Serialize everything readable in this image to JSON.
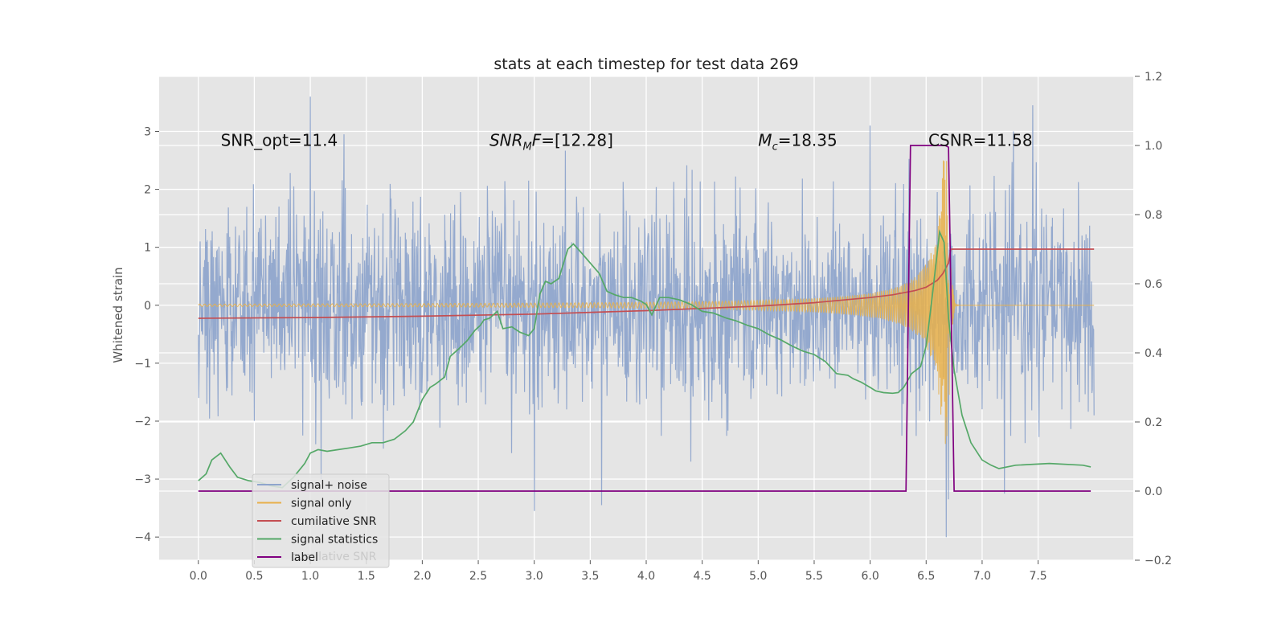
{
  "chart_data": {
    "type": "line",
    "title": "stats at each timestep for test data 269",
    "ylabel": "Whitened strain",
    "y2label": "",
    "xlim": [
      -0.35,
      8.35
    ],
    "ylim": [
      -4.4,
      3.95
    ],
    "y2lim": [
      -0.2,
      1.2
    ],
    "xticks": [
      0.0,
      0.5,
      1.0,
      1.5,
      2.0,
      2.5,
      3.0,
      3.5,
      4.0,
      4.5,
      5.0,
      5.5,
      6.0,
      6.5,
      7.0,
      7.5
    ],
    "xtick_labels": [
      "0.0",
      "0.5",
      "1.0",
      "1.5",
      "2.0",
      "2.5",
      "3.0",
      "3.5",
      "4.0",
      "4.5",
      "5.0",
      "5.5",
      "6.0",
      "6.5",
      "7.0",
      "7.5"
    ],
    "yticks": [
      -4,
      -3,
      -2,
      -1,
      0,
      1,
      2,
      3
    ],
    "ytick_labels": [
      "−4",
      "−3",
      "−2",
      "−1",
      "0",
      "1",
      "2",
      "3"
    ],
    "y2ticks": [
      -0.2,
      0.0,
      0.2,
      0.4,
      0.6,
      0.8,
      1.0,
      1.2
    ],
    "y2tick_labels": [
      "−0.2",
      "0.0",
      "0.2",
      "0.4",
      "0.6",
      "0.8",
      "1.0",
      "1.2"
    ],
    "grid": true,
    "legend_position": "lower-left",
    "annotations": [
      {
        "text": "SNR_opt=11.4",
        "x": 0.2,
        "y": 2.85
      },
      {
        "text": "SNR",
        "sub": "M",
        "suffix": "F=[12.28]",
        "italic": true,
        "x": 2.6,
        "y": 2.85
      },
      {
        "text": "M",
        "sub": "c",
        "suffix": "=18.35",
        "italic": true,
        "x": 5.0,
        "y": 2.85
      },
      {
        "text": "CSNR=11.58",
        "x": 6.52,
        "y": 2.85
      }
    ],
    "legend_ghost_text": "cumilative SNR",
    "series": [
      {
        "name": "signal+ noise",
        "axis": "left",
        "color": "#8fa5cc",
        "generated": "noise",
        "x_range": [
          0.0,
          8.0
        ],
        "std": 0.85,
        "markers": [
          [
            0.005,
            1.45
          ],
          [
            0.005,
            -1.6
          ],
          [
            1.0,
            3.6
          ],
          [
            1.05,
            -2.4
          ],
          [
            1.3,
            2.95
          ],
          [
            2.95,
            2.15
          ],
          [
            3.0,
            -3.55
          ],
          [
            3.6,
            -3.45
          ],
          [
            4.4,
            -2.7
          ],
          [
            6.0,
            3.1
          ],
          [
            6.68,
            -4.0
          ],
          [
            6.7,
            -3.35
          ],
          [
            7.2,
            -3.25
          ],
          [
            7.45,
            3.45
          ],
          [
            8.0,
            1.7
          ],
          [
            8.0,
            -1.9
          ]
        ]
      },
      {
        "name": "signal only",
        "axis": "left",
        "color": "#e8b04a",
        "generated": "chirp",
        "x_range": [
          0.0,
          8.0
        ],
        "amplitude_start": 0.02,
        "amplitude_peak": 2.5,
        "merger": 6.72
      },
      {
        "name": "cumilative SNR",
        "axis": "right",
        "color": "#c44e52",
        "x": [
          0.0,
          1.0,
          2.0,
          3.0,
          4.0,
          5.0,
          5.5,
          6.0,
          6.2,
          6.4,
          6.5,
          6.6,
          6.65,
          6.7,
          6.72,
          8.0
        ],
        "y": [
          0.5,
          0.502,
          0.506,
          0.512,
          0.522,
          0.535,
          0.545,
          0.56,
          0.568,
          0.58,
          0.59,
          0.61,
          0.63,
          0.66,
          0.7,
          0.7
        ]
      },
      {
        "name": "signal statistics",
        "axis": "right",
        "color": "#55a868",
        "x": [
          0.0,
          0.07,
          0.12,
          0.2,
          0.28,
          0.35,
          0.45,
          0.55,
          0.65,
          0.75,
          0.85,
          0.95,
          1.0,
          1.07,
          1.15,
          1.25,
          1.35,
          1.45,
          1.55,
          1.65,
          1.75,
          1.85,
          1.92,
          2.0,
          2.07,
          2.12,
          2.2,
          2.25,
          2.32,
          2.4,
          2.47,
          2.52,
          2.55,
          2.6,
          2.67,
          2.72,
          2.8,
          2.87,
          2.95,
          3.0,
          3.05,
          3.1,
          3.15,
          3.22,
          3.3,
          3.35,
          3.42,
          3.5,
          3.58,
          3.62,
          3.65,
          3.72,
          3.8,
          3.87,
          3.95,
          4.0,
          4.05,
          4.12,
          4.2,
          4.3,
          4.4,
          4.5,
          4.6,
          4.72,
          4.8,
          4.9,
          5.0,
          5.1,
          5.2,
          5.3,
          5.4,
          5.5,
          5.6,
          5.7,
          5.8,
          5.85,
          5.92,
          6.0,
          6.05,
          6.12,
          6.2,
          6.25,
          6.3,
          6.37,
          6.45,
          6.5,
          6.55,
          6.62,
          6.66,
          6.7,
          6.75,
          6.82,
          6.9,
          7.0,
          7.08,
          7.15,
          7.3,
          7.6,
          7.9,
          7.97
        ],
        "y": [
          0.03,
          0.05,
          0.09,
          0.11,
          0.07,
          0.04,
          0.03,
          0.025,
          0.015,
          0.01,
          0.04,
          0.08,
          0.11,
          0.12,
          0.115,
          0.12,
          0.125,
          0.13,
          0.14,
          0.14,
          0.15,
          0.175,
          0.2,
          0.265,
          0.3,
          0.31,
          0.33,
          0.39,
          0.41,
          0.435,
          0.465,
          0.48,
          0.495,
          0.5,
          0.52,
          0.47,
          0.475,
          0.46,
          0.45,
          0.47,
          0.57,
          0.607,
          0.6,
          0.615,
          0.7,
          0.715,
          0.69,
          0.66,
          0.63,
          0.6,
          0.578,
          0.568,
          0.56,
          0.56,
          0.55,
          0.54,
          0.51,
          0.56,
          0.56,
          0.553,
          0.54,
          0.52,
          0.515,
          0.5,
          0.493,
          0.48,
          0.47,
          0.452,
          0.438,
          0.42,
          0.405,
          0.395,
          0.375,
          0.34,
          0.335,
          0.325,
          0.315,
          0.3,
          0.29,
          0.285,
          0.283,
          0.285,
          0.3,
          0.34,
          0.36,
          0.42,
          0.55,
          0.75,
          0.72,
          0.5,
          0.35,
          0.22,
          0.14,
          0.09,
          0.075,
          0.065,
          0.075,
          0.08,
          0.075,
          0.07
        ],
        "dashed_noise": false
      },
      {
        "name": "label",
        "axis": "right",
        "color": "#800080",
        "x": [
          0.0,
          6.32,
          6.36,
          6.67,
          6.7,
          6.75,
          7.97
        ],
        "y": [
          0.0,
          0.0,
          1.0,
          1.0,
          0.995,
          0.0,
          0.0
        ]
      }
    ],
    "legend": [
      "signal+ noise",
      "signal only",
      "cumilative SNR",
      "signal statistics",
      "label"
    ]
  }
}
